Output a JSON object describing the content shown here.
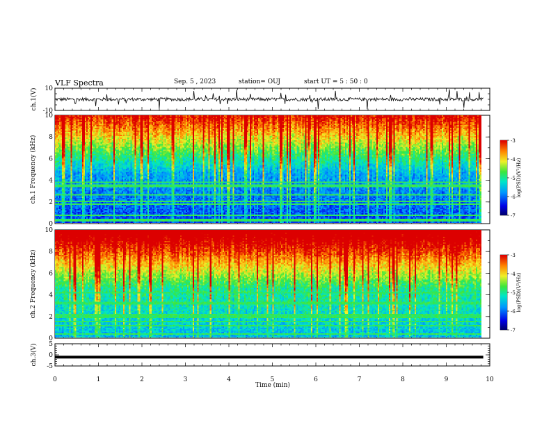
{
  "header": {
    "title": "VLF Spectra",
    "date": "Sep. 5 , 2023",
    "station": "station= OUJ",
    "start_ut": "start UT = 5 : 50 : 0"
  },
  "chart_data": [
    {
      "type": "line",
      "name": "waveform-ch1",
      "ylabel": "ch.1(V)",
      "ylim": [
        -10,
        10
      ],
      "ytick_labels": [
        "10",
        "-10"
      ],
      "xlim": [
        0,
        10
      ],
      "trace_level": 0,
      "trace_amplitude": 1.5
    },
    {
      "type": "heatmap",
      "name": "spectrogram-ch1",
      "ylabel": "ch.1 Frequency (kHz)",
      "ylim": [
        0,
        10
      ],
      "ytick_labels": [
        "0",
        "2",
        "4",
        "6",
        "8",
        "10"
      ],
      "xlim": [
        0,
        9.83
      ],
      "colorbar": {
        "label": "log(PSD)(V²/Hz)",
        "range": [
          -7,
          -3
        ],
        "tick_labels": [
          "-3",
          "-4",
          "-5",
          "-6",
          "-7"
        ]
      }
    },
    {
      "type": "heatmap",
      "name": "spectrogram-ch2",
      "ylabel": "ch.2 Frequency (kHz)",
      "ylim": [
        0,
        10
      ],
      "ytick_labels": [
        "0",
        "2",
        "4",
        "6",
        "8",
        "10"
      ],
      "xlim": [
        0,
        9.83
      ],
      "colorbar": {
        "label": "log(PSD)(V²/Hz)",
        "range": [
          -7,
          -3
        ],
        "tick_labels": [
          "-3",
          "-4",
          "-5",
          "-6",
          "-7"
        ]
      }
    },
    {
      "type": "line",
      "name": "waveform-ch3",
      "ylabel": "ch.3(V)",
      "ylim": [
        -5,
        5
      ],
      "ytick_labels": [
        "5",
        "0",
        "-5"
      ],
      "xlim": [
        0,
        10
      ],
      "trace_level": -1
    }
  ],
  "x_axis": {
    "label": "Time (min)",
    "range": [
      0,
      10
    ],
    "tick_labels": [
      "0",
      "1",
      "2",
      "3",
      "4",
      "5",
      "6",
      "7",
      "8",
      "9",
      "10"
    ]
  }
}
